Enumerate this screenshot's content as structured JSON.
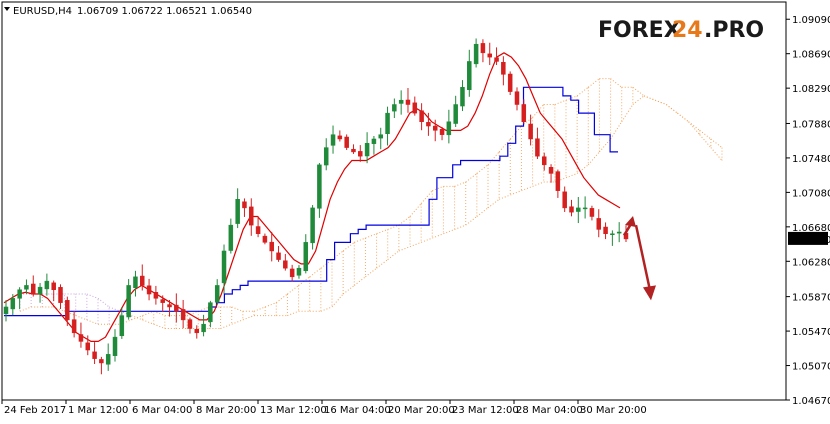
{
  "header": {
    "symbol": "EURUSD,H4",
    "ohlc": "1.06709 1.06722 1.06521 1.06540"
  },
  "logo": {
    "part1": "FOREX",
    "part2": "24",
    "part3": ".PRO"
  },
  "colors": {
    "bull_candle": "#1f8a3a",
    "bear_candle": "#d61f1f",
    "tenkan": "#e00000",
    "kijun": "#0000e0",
    "cloud_bull": "#f4a35c",
    "cloud_bear": "#c8a0e0",
    "arrow": "#b22222",
    "price_box": "#000000"
  },
  "chart_data": {
    "type": "candlestick",
    "x_labels": [
      "24 Feb 2017",
      "1 Mar 12:00",
      "6 Mar 04:00",
      "8 Mar 20:00",
      "13 Mar 12:00",
      "16 Mar 04:00",
      "20 Mar 20:00",
      "23 Mar 12:00",
      "28 Mar 04:00",
      "30 Mar 20:00"
    ],
    "y_ticks": [
      "1.09090",
      "1.08690",
      "1.08290",
      "1.07880",
      "1.07480",
      "1.07080",
      "1.06680",
      "1.06280",
      "1.05870",
      "1.05470",
      "1.05070",
      "1.04670"
    ],
    "ylim": [
      1.0467,
      1.0929
    ],
    "current_price": "1.06540",
    "close_series": [
      1.0575,
      1.0585,
      1.0595,
      1.06,
      1.059,
      1.0598,
      1.0605,
      1.0595,
      1.058,
      1.056,
      1.0545,
      1.0535,
      1.0525,
      1.0515,
      1.051,
      1.052,
      1.054,
      1.0565,
      1.06,
      1.061,
      1.06,
      1.059,
      1.0585,
      1.058,
      1.0575,
      1.057,
      1.056,
      1.055,
      1.0545,
      1.0555,
      1.058,
      1.06,
      1.064,
      1.067,
      1.07,
      1.069,
      1.067,
      1.066,
      1.065,
      1.064,
      1.063,
      1.062,
      1.061,
      1.062,
      1.065,
      1.069,
      1.074,
      1.076,
      1.0775,
      1.077,
      1.076,
      1.0755,
      1.075,
      1.0765,
      1.077,
      1.0775,
      1.08,
      1.081,
      1.0815,
      1.081,
      1.08,
      1.079,
      1.0785,
      1.078,
      1.0775,
      1.079,
      1.081,
      1.083,
      1.086,
      1.088,
      1.087,
      1.0865,
      1.086,
      1.0845,
      1.0825,
      1.081,
      1.079,
      1.077,
      1.075,
      1.074,
      1.073,
      1.071,
      1.069,
      1.0685,
      1.069,
      1.069,
      1.068,
      1.0665,
      1.066,
      1.066,
      1.0662,
      1.0654
    ],
    "tenkan_series": [
      1.058,
      1.0585,
      1.059,
      1.0592,
      1.059,
      1.059,
      1.0585,
      1.0575,
      1.0565,
      1.0555,
      1.0545,
      1.054,
      1.0535,
      1.0535,
      1.054,
      1.0555,
      1.057,
      1.0585,
      1.0595,
      1.06,
      1.0595,
      1.059,
      1.0585,
      1.058,
      1.0575,
      1.057,
      1.0565,
      1.056,
      1.056,
      1.057,
      1.059,
      1.0615,
      1.064,
      1.0665,
      1.068,
      1.068,
      1.067,
      1.066,
      1.065,
      1.064,
      1.063,
      1.0625,
      1.0625,
      1.064,
      1.067,
      1.07,
      1.072,
      1.0735,
      1.0745,
      1.0745,
      1.0745,
      1.075,
      1.0755,
      1.076,
      1.077,
      1.0785,
      1.08,
      1.0805,
      1.08,
      1.079,
      1.0785,
      1.078,
      1.078,
      1.078,
      1.0785,
      1.08,
      1.082,
      1.0845,
      1.0865,
      1.087,
      1.0865,
      1.0855,
      1.084,
      1.082,
      1.08,
      1.079,
      1.078,
      1.077,
      1.0755,
      1.074,
      1.0725,
      1.0715,
      1.0705,
      1.07,
      1.0695,
      1.069
    ],
    "kijun_series": [
      1.0565,
      1.0565,
      1.0565,
      1.0565,
      1.0565,
      1.0565,
      1.0565,
      1.0565,
      1.057,
      1.057,
      1.057,
      1.057,
      1.057,
      1.057,
      1.057,
      1.057,
      1.057,
      1.057,
      1.057,
      1.057,
      1.057,
      1.057,
      1.057,
      1.057,
      1.057,
      1.057,
      1.0575,
      1.058,
      1.059,
      1.0595,
      1.06,
      1.0605,
      1.0605,
      1.0605,
      1.0605,
      1.0605,
      1.0605,
      1.0605,
      1.0605,
      1.0605,
      1.0605,
      1.063,
      1.065,
      1.065,
      1.066,
      1.0665,
      1.067,
      1.067,
      1.067,
      1.067,
      1.067,
      1.067,
      1.067,
      1.067,
      1.07,
      1.0725,
      1.0725,
      1.074,
      1.0745,
      1.0745,
      1.0745,
      1.0745,
      1.0745,
      1.075,
      1.0765,
      1.0785,
      1.083,
      1.083,
      1.083,
      1.083,
      1.083,
      1.082,
      1.0815,
      1.08,
      1.08,
      1.0775,
      1.0775,
      1.0755,
      1.0755
    ],
    "cloud_span_a": [
      1.057,
      1.0575,
      1.0575,
      1.0575,
      1.057,
      1.0565,
      1.056,
      1.0555,
      1.0555,
      1.0555,
      1.056,
      1.0565,
      1.057,
      1.0565,
      1.0565,
      1.0565,
      1.057,
      1.0575,
      1.0575,
      1.0575,
      1.057,
      1.057,
      1.0575,
      1.058,
      1.059,
      1.06,
      1.061,
      1.062,
      1.063,
      1.064,
      1.065,
      1.0655,
      1.066,
      1.0665,
      1.067,
      1.068,
      1.0695,
      1.071,
      1.0715,
      1.0715,
      1.072,
      1.073,
      1.074,
      1.0755,
      1.077,
      1.0785,
      1.0795,
      1.081,
      1.081,
      1.0815,
      1.082,
      1.083,
      1.084,
      1.084,
      1.083,
      1.083,
      1.082,
      1.0815,
      1.081,
      1.08,
      1.079,
      1.078,
      1.077,
      1.076
    ],
    "cloud_span_b": [
      1.059,
      1.059,
      1.059,
      1.059,
      1.059,
      1.059,
      1.059,
      1.0585,
      1.0575,
      1.057,
      1.0565,
      1.056,
      1.0555,
      1.055,
      1.055,
      1.055,
      1.055,
      1.055,
      1.055,
      1.0555,
      1.056,
      1.0565,
      1.0565,
      1.0565,
      1.0565,
      1.057,
      1.057,
      1.057,
      1.0575,
      1.059,
      1.06,
      1.061,
      1.062,
      1.063,
      1.064,
      1.0645,
      1.065,
      1.0655,
      1.066,
      1.0665,
      1.067,
      1.068,
      1.069,
      1.07,
      1.0705,
      1.071,
      1.0715,
      1.072,
      1.072,
      1.0725,
      1.073,
      1.074,
      1.0755,
      1.077,
      1.079,
      1.081,
      1.082,
      1.0815,
      1.081,
      1.08,
      1.079,
      1.0775,
      1.076,
      1.0745
    ],
    "forecast_arrow": {
      "from_price": 1.067,
      "to_price": 1.0585
    }
  }
}
